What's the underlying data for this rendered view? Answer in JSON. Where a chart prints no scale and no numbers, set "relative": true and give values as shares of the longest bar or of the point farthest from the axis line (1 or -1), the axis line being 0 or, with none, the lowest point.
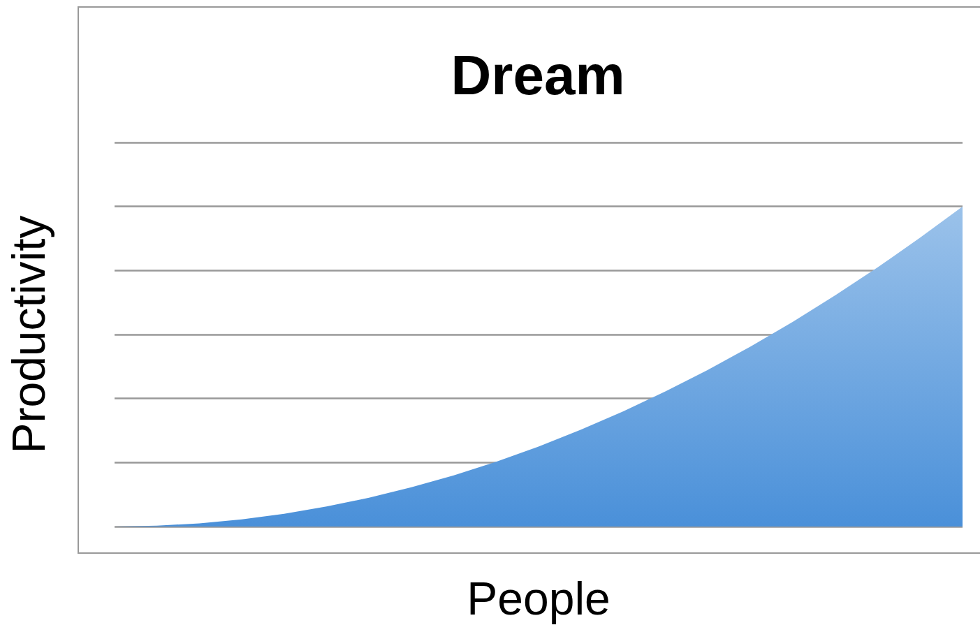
{
  "chart_data": {
    "type": "area",
    "title": "Dream",
    "xlabel": "People",
    "ylabel": "Productivity",
    "categories": [
      null,
      null,
      null,
      null,
      null,
      null,
      null,
      null,
      null,
      null,
      null,
      null,
      null,
      null,
      null,
      null,
      null,
      null,
      null,
      null,
      null
    ],
    "values": [
      0,
      0.0025,
      0.01,
      0.0225,
      0.04,
      0.0625,
      0.09,
      0.1225,
      0.16,
      0.2025,
      0.25,
      0.3025,
      0.36,
      0.4225,
      0.49,
      0.5625,
      0.64,
      0.7225,
      0.81,
      0.9025,
      1
    ],
    "color": "#4a90d9",
    "relative": true,
    "grid": "y",
    "marker": "none"
  }
}
